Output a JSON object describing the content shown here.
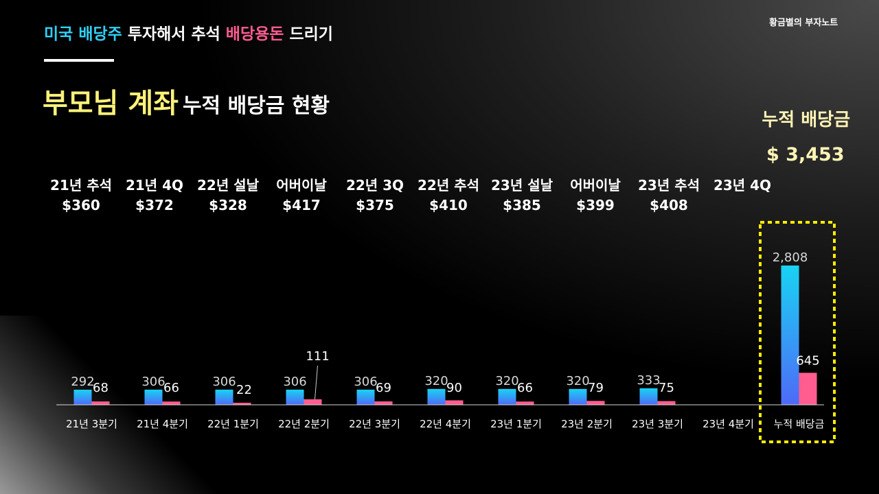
{
  "header": {
    "subtitle_parts": [
      "미국 배당주",
      " 투자해서 추석 ",
      "배당용돈",
      " 드리기"
    ],
    "brand": "황금별의 부자노트",
    "title_bold": "부모님 계좌",
    "title_rest": "누적 배당금 현황"
  },
  "total": {
    "label": "누적 배당금",
    "value": "$ 3,453"
  },
  "events": [
    {
      "name": "21년 추석",
      "amount": "$360"
    },
    {
      "name": "21년 4Q",
      "amount": "$372"
    },
    {
      "name": "22년 설날",
      "amount": "$328"
    },
    {
      "name": "어버이날",
      "amount": "$417"
    },
    {
      "name": "22년 3Q",
      "amount": "$375"
    },
    {
      "name": "22년 추석",
      "amount": "$410"
    },
    {
      "name": "23년 설날",
      "amount": "$385"
    },
    {
      "name": "어버이날",
      "amount": "$399"
    },
    {
      "name": "23년 추석",
      "amount": "$408"
    },
    {
      "name": "23년 4Q",
      "amount": ""
    }
  ],
  "colors": {
    "series_a_top": "#19d3f3",
    "series_a_bottom": "#4e6af7",
    "series_b": "#ff5d8f",
    "accent_yellow": "#ffee00"
  },
  "chart_data": {
    "type": "bar",
    "categories": [
      "21년 3분기",
      "21년 4분기",
      "22년 1분기",
      "22년 2분기",
      "22년 3분기",
      "22년 4분기",
      "23년 1분기",
      "23년 2분기",
      "23년 3분기",
      "23년 4분기",
      "누적 배당금"
    ],
    "series": [
      {
        "values": [
          292,
          306,
          306,
          306,
          306,
          320,
          320,
          320,
          333,
          null,
          2808
        ]
      },
      {
        "values": [
          68,
          66,
          22,
          111,
          69,
          90,
          66,
          79,
          75,
          null,
          645
        ]
      }
    ],
    "ylim": [
      0,
      2808
    ],
    "grid": false,
    "legend": "none",
    "highlight_category": "누적 배당금"
  }
}
